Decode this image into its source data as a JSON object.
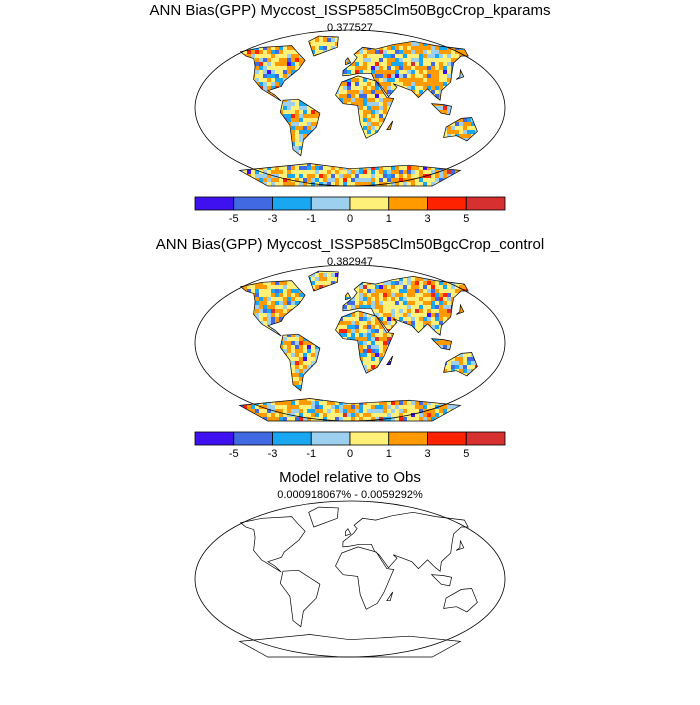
{
  "panels": [
    {
      "title": "ANN Bias(GPP) Myccost_ISSP585Clm50BgcCrop_kparams",
      "subtitle": "0.377527",
      "colorbar": {
        "colors": [
          "#3f10f0",
          "#4169e1",
          "#1aa7f2",
          "#9dd0ee",
          "#fff07a",
          "#ff9a00",
          "#ff2200",
          "#d73030"
        ],
        "labels": [
          -5,
          -3,
          -1,
          0,
          1,
          3,
          5
        ]
      }
    },
    {
      "title": "ANN Bias(GPP) Myccost_ISSP585Clm50BgcCrop_control",
      "subtitle": "0.382947",
      "colorbar": {
        "colors": [
          "#3f10f0",
          "#4169e1",
          "#1aa7f2",
          "#9dd0ee",
          "#fff07a",
          "#ff9a00",
          "#ff2200",
          "#d73030"
        ],
        "labels": [
          -5,
          -3,
          -1,
          0,
          1,
          3,
          5
        ]
      }
    },
    {
      "title": "Model relative to Obs",
      "subtitle": "0.000918067% - 0.0059292%"
    }
  ]
}
